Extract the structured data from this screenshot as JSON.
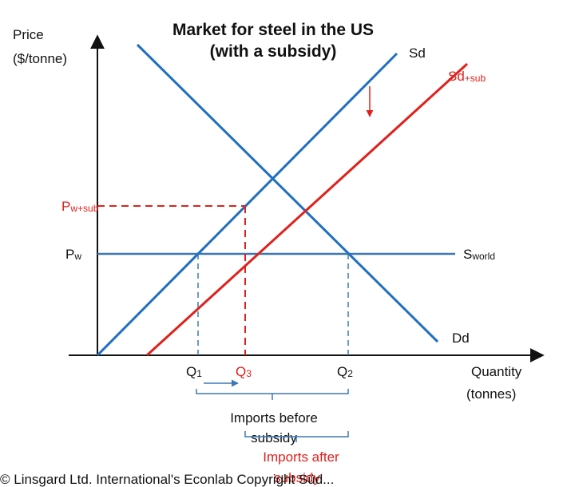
{
  "title": {
    "line1": "Market for steel in the US",
    "line2": "(with a subsidy)"
  },
  "axes": {
    "y_label_1": "Price",
    "y_label_2": "($/tonne)",
    "x_label_1": "Quantity",
    "x_label_2": "(tonnes)"
  },
  "curves": {
    "sd": "Sd",
    "sd_sub_main": "Sd",
    "sd_sub_sub": "+sub",
    "dd": "Dd",
    "sworld_main": "S",
    "sworld_sub": "world"
  },
  "prices": {
    "pw_main": "P",
    "pw_sub": "w",
    "pwsub_main": "P",
    "pwsub_sub": "w+sub"
  },
  "quantities": {
    "q1_main": "Q",
    "q1_sub": "1",
    "q3_main": "Q",
    "q3_sub": "3",
    "q2_main": "Q",
    "q2_sub": "2"
  },
  "annotations": {
    "imports_before_1": "Imports before",
    "imports_before_2": "subsidy",
    "imports_after_1": "Imports after",
    "imports_after_2": "subsidy"
  },
  "footer": "© Linsgard Ltd. International's Econlab Copyright Süd..."
}
